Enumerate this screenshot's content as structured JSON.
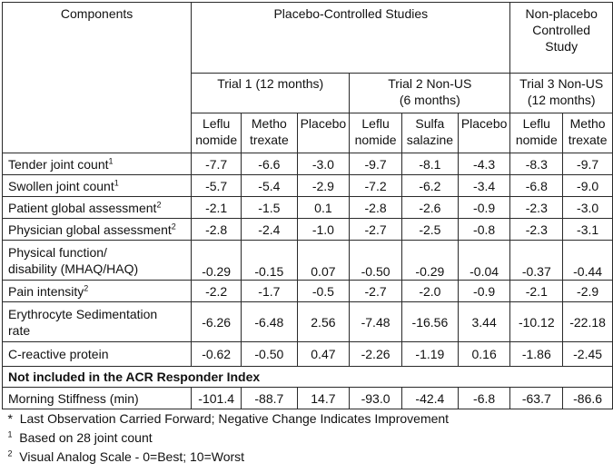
{
  "header": {
    "components": "Components",
    "placebo_controlled": "Placebo-Controlled Studies",
    "non_placebo": [
      "Non-placebo",
      "Controlled",
      "Study"
    ],
    "trial1": "Trial 1 (12 months)",
    "trial2": [
      "Trial 2 Non-US",
      "(6 months)"
    ],
    "trial3": [
      "Trial 3 Non-US",
      "(12 months)"
    ],
    "drugs": [
      [
        "Leflu",
        "nomide"
      ],
      [
        "Metho",
        "trexate"
      ],
      [
        "Placebo"
      ],
      [
        "Leflu",
        "nomide"
      ],
      [
        "Sulfa",
        "salazine"
      ],
      [
        "Placebo"
      ],
      [
        "Leflu",
        "nomide"
      ],
      [
        "Metho",
        "trexate"
      ]
    ]
  },
  "rows": [
    {
      "label": [
        "Tender joint count"
      ],
      "sup": "1",
      "values": [
        "-7.7",
        "-6.6",
        "-3.0",
        "-9.7",
        "-8.1",
        "-4.3",
        "-8.3",
        "-9.7"
      ]
    },
    {
      "label": [
        "Swollen joint count"
      ],
      "sup": "1",
      "values": [
        "-5.7",
        "-5.4",
        "-2.9",
        "-7.2",
        "-6.2",
        "-3.4",
        "-6.8",
        "-9.0"
      ]
    },
    {
      "label": [
        "Patient global assessment"
      ],
      "sup": "2",
      "values": [
        "-2.1",
        "-1.5",
        "0.1",
        "-2.8",
        "-2.6",
        "-0.9",
        "-2.3",
        "-3.0"
      ]
    },
    {
      "label": [
        "Physician global assessment"
      ],
      "sup": "2",
      "values": [
        "-2.8",
        "-2.4",
        "-1.0",
        "-2.7",
        "-2.5",
        "-0.8",
        "-2.3",
        "-3.1"
      ]
    },
    {
      "label": [
        "Physical function/",
        "disability (MHAQ/HAQ)"
      ],
      "sup": "",
      "values": [
        "-0.29",
        "-0.15",
        "0.07",
        "-0.50",
        "-0.29",
        "-0.04",
        "-0.37",
        "-0.44"
      ]
    },
    {
      "label": [
        "Pain intensity"
      ],
      "sup": "2",
      "values": [
        "-2.2",
        "-1.7",
        "-0.5",
        "-2.7",
        "-2.0",
        "-0.9",
        "-2.1",
        "-2.9"
      ]
    },
    {
      "label": [
        "Erythrocyte Sedimentation",
        "rate"
      ],
      "sup": "",
      "values": [
        "-6.26",
        "-6.48",
        "2.56",
        "-7.48",
        "-16.56",
        "3.44",
        "-10.12",
        "-22.18"
      ]
    },
    {
      "label": [
        "C-reactive protein"
      ],
      "sup": "",
      "values": [
        "-0.62",
        "-0.50",
        "0.47",
        "-2.26",
        "-1.19",
        "0.16",
        "-1.86",
        "-2.45"
      ]
    }
  ],
  "section_title": "Not included in the ACR Responder Index",
  "morning": {
    "label": "Morning Stiffness (min)",
    "values": [
      "-101.4",
      "-88.7",
      "14.7",
      "-93.0",
      "-42.4",
      "-6.8",
      "-63.7",
      "-86.6"
    ]
  },
  "footnotes": [
    {
      "mark": "*",
      "text": "Last Observation Carried Forward; Negative Change Indicates Improvement"
    },
    {
      "mark": "1",
      "text": "Based on 28 joint count"
    },
    {
      "mark": "2",
      "text": "Visual Analog Scale - 0=Best; 10=Worst"
    }
  ]
}
